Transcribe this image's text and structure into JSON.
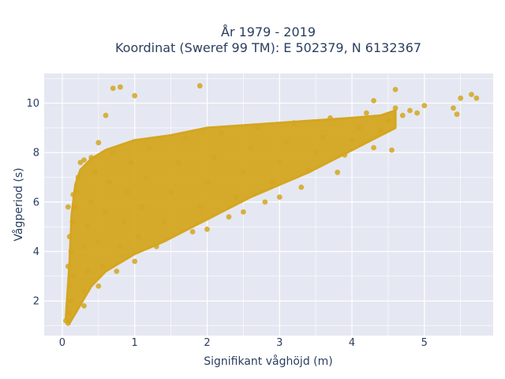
{
  "chart_data": {
    "type": "scatter",
    "title_line1": "År 1979 - 2019",
    "title_line2": "Koordinat (Sweref 99 TM): E 502379, N 6132367",
    "xlabel": "Signifikant våghöjd (m)",
    "ylabel": "Vågperiod (s)",
    "xlim": [
      -0.25,
      5.95
    ],
    "ylim": [
      0.6,
      11.2
    ],
    "xticks": [
      0,
      1,
      2,
      3,
      4,
      5
    ],
    "yticks": [
      2,
      4,
      6,
      8,
      10
    ],
    "grid": true,
    "legend": "none",
    "colors": {
      "marker": "#d4a620",
      "plot_bg": "#e5e8f2",
      "grid": "#ffffff",
      "text": "#2a3f5f"
    },
    "points": [
      [
        0.05,
        1.2
      ],
      [
        0.08,
        1.1
      ],
      [
        0.1,
        1.5
      ],
      [
        0.12,
        2.0
      ],
      [
        0.1,
        2.6
      ],
      [
        0.15,
        3.0
      ],
      [
        0.08,
        3.4
      ],
      [
        0.12,
        4.0
      ],
      [
        0.1,
        4.6
      ],
      [
        0.14,
        5.2
      ],
      [
        0.18,
        5.8
      ],
      [
        0.2,
        6.4
      ],
      [
        0.22,
        7.0
      ],
      [
        0.25,
        7.6
      ],
      [
        0.3,
        1.8
      ],
      [
        0.3,
        2.4
      ],
      [
        0.35,
        3.2
      ],
      [
        0.3,
        4.2
      ],
      [
        0.35,
        5.0
      ],
      [
        0.4,
        6.0
      ],
      [
        0.45,
        7.2
      ],
      [
        0.5,
        2.6
      ],
      [
        0.55,
        3.4
      ],
      [
        0.5,
        4.4
      ],
      [
        0.6,
        5.6
      ],
      [
        0.65,
        6.8
      ],
      [
        0.7,
        8.0
      ],
      [
        0.75,
        3.2
      ],
      [
        0.8,
        4.2
      ],
      [
        0.85,
        5.2
      ],
      [
        0.9,
        6.4
      ],
      [
        0.95,
        7.6
      ],
      [
        1.0,
        3.6
      ],
      [
        1.05,
        4.6
      ],
      [
        1.1,
        5.8
      ],
      [
        1.15,
        7.0
      ],
      [
        1.2,
        8.2
      ],
      [
        1.3,
        4.2
      ],
      [
        1.4,
        5.2
      ],
      [
        1.5,
        6.4
      ],
      [
        1.6,
        7.6
      ],
      [
        1.7,
        8.6
      ],
      [
        1.8,
        4.8
      ],
      [
        1.9,
        5.8
      ],
      [
        2.0,
        6.8
      ],
      [
        2.1,
        7.8
      ],
      [
        2.2,
        8.8
      ],
      [
        2.3,
        5.4
      ],
      [
        2.4,
        6.2
      ],
      [
        2.5,
        7.2
      ],
      [
        2.6,
        8.2
      ],
      [
        2.7,
        9.0
      ],
      [
        2.8,
        6.0
      ],
      [
        2.9,
        6.8
      ],
      [
        3.0,
        7.6
      ],
      [
        3.1,
        8.4
      ],
      [
        3.2,
        9.2
      ],
      [
        3.3,
        6.6
      ],
      [
        3.4,
        7.3
      ],
      [
        3.5,
        8.0
      ],
      [
        3.6,
        8.6
      ],
      [
        3.7,
        9.4
      ],
      [
        3.8,
        7.2
      ],
      [
        3.9,
        7.9
      ],
      [
        4.0,
        8.5
      ],
      [
        4.1,
        9.0
      ],
      [
        4.2,
        9.6
      ],
      [
        4.3,
        8.2
      ],
      [
        4.4,
        8.9
      ],
      [
        4.5,
        9.3
      ],
      [
        4.6,
        9.8
      ],
      [
        4.7,
        9.5
      ],
      [
        4.8,
        9.7
      ],
      [
        4.9,
        9.6
      ],
      [
        5.0,
        9.9
      ],
      [
        5.4,
        9.8
      ],
      [
        5.5,
        10.2
      ],
      [
        5.65,
        10.35
      ],
      [
        5.72,
        10.2
      ],
      [
        5.45,
        9.55
      ],
      [
        1.9,
        10.7
      ],
      [
        0.8,
        10.65
      ],
      [
        0.7,
        10.6
      ],
      [
        0.6,
        9.5
      ],
      [
        1.0,
        10.3
      ],
      [
        4.6,
        10.55
      ],
      [
        4.3,
        10.1
      ],
      [
        4.55,
        8.1
      ],
      [
        2.0,
        4.9
      ],
      [
        2.5,
        5.6
      ],
      [
        3.0,
        6.2
      ],
      [
        0.15,
        6.3
      ],
      [
        0.08,
        5.8
      ],
      [
        0.4,
        7.8
      ],
      [
        0.3,
        7.7
      ],
      [
        0.5,
        8.4
      ]
    ]
  }
}
